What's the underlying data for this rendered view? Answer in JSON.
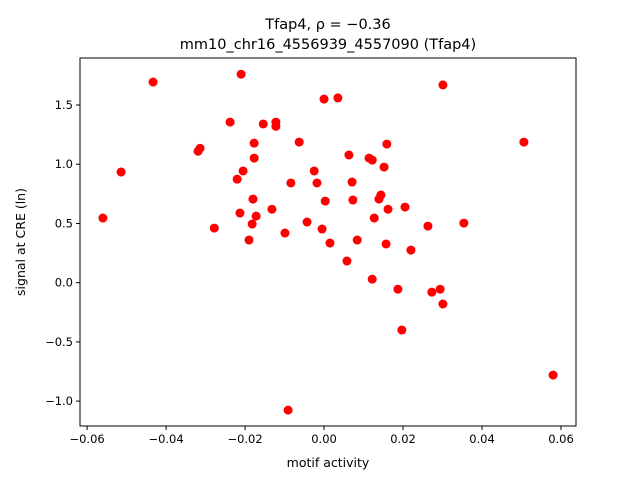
{
  "chart_data": {
    "type": "scatter",
    "title_line1": "Tfap4, ρ = −0.36",
    "title_line2": "mm10_chr16_4556939_4557090 (Tfap4)",
    "xlabel": "motif activity",
    "ylabel": "signal at CRE (ln)",
    "xlim": [
      -0.0618,
      0.0638
    ],
    "ylim": [
      -1.21,
      1.897
    ],
    "xticks": [
      -0.06,
      -0.04,
      -0.02,
      0.0,
      0.02,
      0.04,
      0.06
    ],
    "xtick_labels": [
      "−0.06",
      "−0.04",
      "−0.02",
      "0.00",
      "0.02",
      "0.04",
      "0.06"
    ],
    "yticks": [
      -1.0,
      -0.5,
      0.0,
      0.5,
      1.0,
      1.5
    ],
    "ytick_labels": [
      "−1.0",
      "−0.5",
      "0.0",
      "0.5",
      "1.0",
      "1.5"
    ],
    "grid": false,
    "marker_color": "#ff0000",
    "points": [
      [
        -0.056,
        0.546
      ],
      [
        -0.0514,
        0.934
      ],
      [
        -0.0433,
        1.694
      ],
      [
        -0.0278,
        0.461
      ],
      [
        -0.0319,
        1.11
      ],
      [
        -0.0314,
        1.135
      ],
      [
        -0.0238,
        1.356
      ],
      [
        -0.022,
        0.874
      ],
      [
        -0.021,
        1.76
      ],
      [
        -0.0205,
        0.943
      ],
      [
        -0.0213,
        0.588
      ],
      [
        -0.019,
        0.36
      ],
      [
        -0.0182,
        0.495
      ],
      [
        -0.018,
        0.706
      ],
      [
        -0.0177,
        1.052
      ],
      [
        -0.0177,
        1.178
      ],
      [
        -0.0172,
        0.562
      ],
      [
        -0.0154,
        1.34
      ],
      [
        -0.0132,
        0.62
      ],
      [
        -0.0122,
        1.356
      ],
      [
        -0.0122,
        1.32
      ],
      [
        -0.0099,
        0.419
      ],
      [
        -0.0091,
        -1.076
      ],
      [
        -0.0084,
        0.842
      ],
      [
        -0.0063,
        1.187
      ],
      [
        -0.0043,
        0.512
      ],
      [
        -0.0025,
        0.943
      ],
      [
        -0.0018,
        0.842
      ],
      [
        -0.0005,
        0.453
      ],
      [
        0.0003,
        0.689
      ],
      [
        0.0,
        1.55
      ],
      [
        0.0015,
        0.335
      ],
      [
        0.0035,
        1.56
      ],
      [
        0.0058,
        0.183
      ],
      [
        0.0063,
        1.078
      ],
      [
        0.0071,
        0.85
      ],
      [
        0.0073,
        0.698
      ],
      [
        0.0084,
        0.36
      ],
      [
        0.0114,
        1.052
      ],
      [
        0.0122,
        1.035
      ],
      [
        0.0122,
        0.03
      ],
      [
        0.0127,
        0.546
      ],
      [
        0.0139,
        0.706
      ],
      [
        0.0144,
        0.74
      ],
      [
        0.0152,
        0.976
      ],
      [
        0.0157,
        0.327
      ],
      [
        0.0159,
        1.17
      ],
      [
        0.0162,
        0.62
      ],
      [
        0.0187,
        -0.055
      ],
      [
        0.0197,
        -0.4
      ],
      [
        0.0205,
        0.638
      ],
      [
        0.022,
        0.275
      ],
      [
        0.0263,
        0.478
      ],
      [
        0.0273,
        -0.08
      ],
      [
        0.0294,
        -0.055
      ],
      [
        0.0301,
        -0.18
      ],
      [
        0.0301,
        1.67
      ],
      [
        0.0354,
        0.503
      ],
      [
        0.0506,
        1.187
      ],
      [
        0.058,
        -0.78
      ]
    ]
  }
}
